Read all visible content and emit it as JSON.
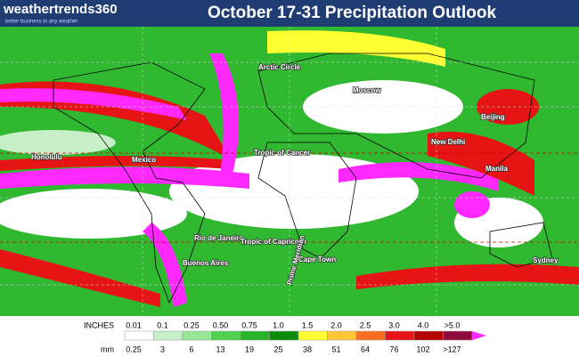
{
  "header": {
    "logo": "weathertrends360",
    "tagline": "better business in any weather",
    "title": "October 17-31 Precipitation Outlook"
  },
  "map": {
    "labels": [
      "Arctic Circle",
      "Moscow",
      "Beijing",
      "New Delhi",
      "Honolulu",
      "Mexico",
      "Tropic of Cancer",
      "Manila",
      "Rio de Janeiro",
      "Tropic of Capricorn",
      "Buenos Aires",
      "Cape Town",
      "Sydney",
      "Prime Meridian"
    ]
  },
  "legend": {
    "inches_label": "INCHES",
    "mm_label": "mm",
    "inches": [
      "0.01",
      "0.1",
      "0.25",
      "0.50",
      "0.75",
      "1.0",
      "1.5",
      "2.0",
      "2.5",
      "3.0",
      "4.0",
      ">5.0"
    ],
    "mm": [
      "0.25",
      "3",
      "6",
      "13",
      "19",
      "25",
      "38",
      "51",
      "64",
      "76",
      "102",
      ">127"
    ],
    "colors": [
      "#ffffff",
      "#c8f0c8",
      "#96e696",
      "#50d250",
      "#28b428",
      "#0a8c0a",
      "#ffff32",
      "#ffc832",
      "#ff6e1e",
      "#e61414",
      "#b40000",
      "#8c0a3c"
    ],
    "overflow_color": "#ff28ff"
  }
}
